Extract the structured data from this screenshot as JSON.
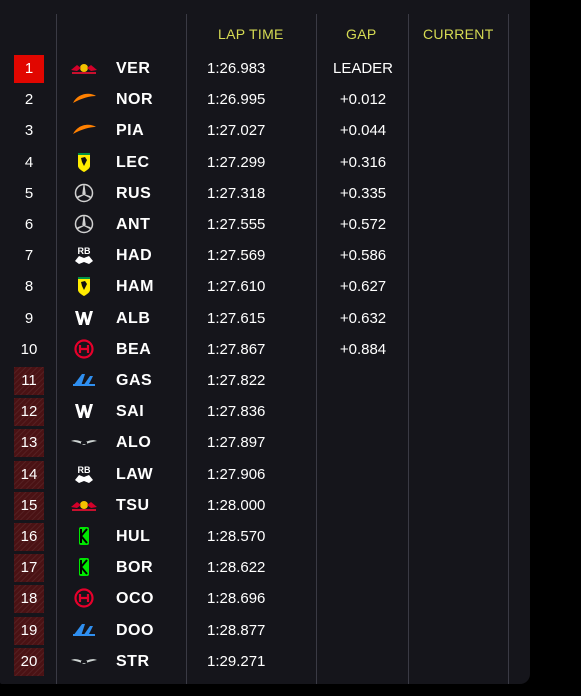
{
  "headers": {
    "lap_time": "LAP TIME",
    "gap": "GAP",
    "current": "CURRENT"
  },
  "colors": {
    "background": "#15151b",
    "header_text": "#d6db53",
    "leader_badge": "#e10600",
    "eliminated_badge": "#4a1214",
    "divider": "#3a3a44"
  },
  "rows": [
    {
      "position": "1",
      "team_icon": "red-bull-logo-icon",
      "driver": "VER",
      "lap_time": "1:26.983",
      "gap": "LEADER",
      "status": "leader"
    },
    {
      "position": "2",
      "team_icon": "mclaren-logo-icon",
      "driver": "NOR",
      "lap_time": "1:26.995",
      "gap": "+0.012",
      "status": "normal"
    },
    {
      "position": "3",
      "team_icon": "mclaren-logo-icon",
      "driver": "PIA",
      "lap_time": "1:27.027",
      "gap": "+0.044",
      "status": "normal"
    },
    {
      "position": "4",
      "team_icon": "ferrari-logo-icon",
      "driver": "LEC",
      "lap_time": "1:27.299",
      "gap": "+0.316",
      "status": "normal"
    },
    {
      "position": "5",
      "team_icon": "mercedes-logo-icon",
      "driver": "RUS",
      "lap_time": "1:27.318",
      "gap": "+0.335",
      "status": "normal"
    },
    {
      "position": "6",
      "team_icon": "mercedes-logo-icon",
      "driver": "ANT",
      "lap_time": "1:27.555",
      "gap": "+0.572",
      "status": "normal"
    },
    {
      "position": "7",
      "team_icon": "racing-bulls-logo-icon",
      "driver": "HAD",
      "lap_time": "1:27.569",
      "gap": "+0.586",
      "status": "normal"
    },
    {
      "position": "8",
      "team_icon": "ferrari-logo-icon",
      "driver": "HAM",
      "lap_time": "1:27.610",
      "gap": "+0.627",
      "status": "normal"
    },
    {
      "position": "9",
      "team_icon": "williams-logo-icon",
      "driver": "ALB",
      "lap_time": "1:27.615",
      "gap": "+0.632",
      "status": "normal"
    },
    {
      "position": "10",
      "team_icon": "haas-logo-icon",
      "driver": "BEA",
      "lap_time": "1:27.867",
      "gap": "+0.884",
      "status": "normal"
    },
    {
      "position": "11",
      "team_icon": "alpine-logo-icon",
      "driver": "GAS",
      "lap_time": "1:27.822",
      "gap": "",
      "status": "eliminated"
    },
    {
      "position": "12",
      "team_icon": "williams-logo-icon",
      "driver": "SAI",
      "lap_time": "1:27.836",
      "gap": "",
      "status": "eliminated"
    },
    {
      "position": "13",
      "team_icon": "aston-martin-logo-icon",
      "driver": "ALO",
      "lap_time": "1:27.897",
      "gap": "",
      "status": "eliminated"
    },
    {
      "position": "14",
      "team_icon": "racing-bulls-logo-icon",
      "driver": "LAW",
      "lap_time": "1:27.906",
      "gap": "",
      "status": "eliminated"
    },
    {
      "position": "15",
      "team_icon": "red-bull-logo-icon",
      "driver": "TSU",
      "lap_time": "1:28.000",
      "gap": "",
      "status": "eliminated"
    },
    {
      "position": "16",
      "team_icon": "kick-sauber-logo-icon",
      "driver": "HUL",
      "lap_time": "1:28.570",
      "gap": "",
      "status": "eliminated"
    },
    {
      "position": "17",
      "team_icon": "kick-sauber-logo-icon",
      "driver": "BOR",
      "lap_time": "1:28.622",
      "gap": "",
      "status": "eliminated"
    },
    {
      "position": "18",
      "team_icon": "haas-logo-icon",
      "driver": "OCO",
      "lap_time": "1:28.696",
      "gap": "",
      "status": "eliminated"
    },
    {
      "position": "19",
      "team_icon": "alpine-logo-icon",
      "driver": "DOO",
      "lap_time": "1:28.877",
      "gap": "",
      "status": "eliminated"
    },
    {
      "position": "20",
      "team_icon": "aston-martin-logo-icon",
      "driver": "STR",
      "lap_time": "1:29.271",
      "gap": "",
      "status": "eliminated"
    }
  ]
}
